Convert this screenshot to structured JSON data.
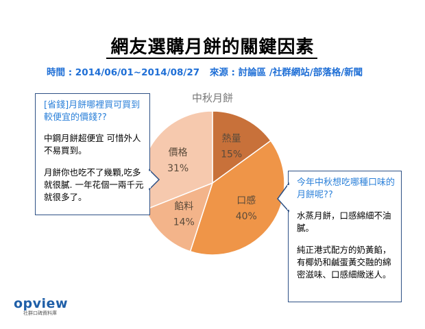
{
  "header": {
    "title": "網友選購月餅的關鍵因素",
    "period": "時間 : 2014/06/01~2014/08/27",
    "source": "來源 : 討論區 /社群網站/部落格/新聞"
  },
  "chart_data": {
    "type": "pie",
    "title": "中秋月餅",
    "categories": [
      "熱量",
      "口感",
      "餡料",
      "價格"
    ],
    "values": [
      15,
      40,
      14,
      31
    ],
    "value_labels": [
      "15%",
      "40%",
      "14%",
      "31%"
    ],
    "colors": [
      "#c8713a",
      "#ef9548",
      "#f3b48a",
      "#f6c9ae"
    ],
    "start_angle_deg": 0,
    "direction": "clockwise",
    "legend": "none"
  },
  "callouts": {
    "left": {
      "question": "[省錢]月餅哪裡買可買到較便宜的價錢??",
      "answer1": "中鋼月餅超便宜 可惜外人不易買到。",
      "answer2": "月餅你也吃不了幾顆,吃多就很膩. 一年花個一兩千元就很多了。"
    },
    "right": {
      "question": "今年中秋想吃哪種口味的月餅呢??",
      "answer1": "水蒸月餅，口感綿細不油膩。",
      "answer2": "純正港式配方的奶黃餡，有椰奶和鹹蛋黃交融的綿密滋味、口感細緻迷人。"
    }
  },
  "logo": {
    "brand": "opview",
    "tagline": "社群口碑資料庫"
  }
}
